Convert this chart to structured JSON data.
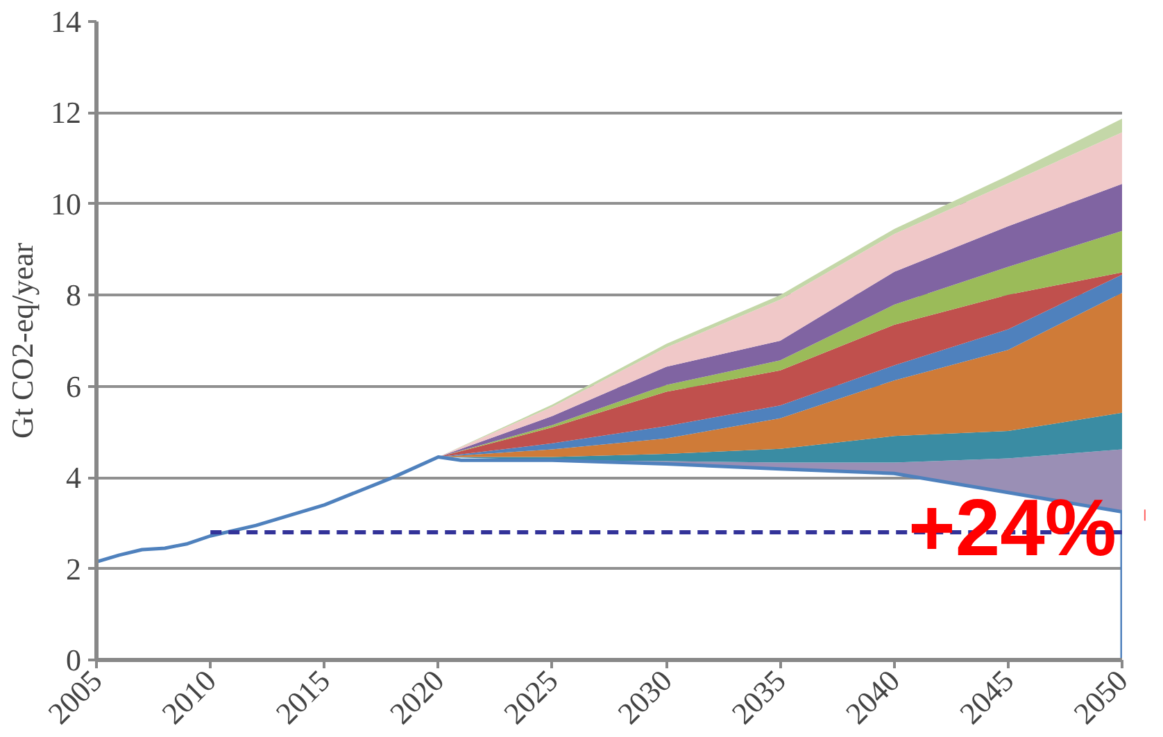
{
  "chart_data": {
    "type": "area",
    "ylabel": "Gt CO2-eq/year",
    "xlim": [
      2005,
      2050
    ],
    "ylim": [
      0,
      14
    ],
    "xticks": [
      2005,
      2010,
      2015,
      2020,
      2025,
      2030,
      2035,
      2040,
      2045,
      2050
    ],
    "yticks": [
      0,
      2,
      4,
      6,
      8,
      10,
      12,
      14
    ],
    "grid": "y",
    "x": [
      2020,
      2025,
      2030,
      2035,
      2040,
      2045,
      2050
    ],
    "series": [
      {
        "type": "line",
        "color": "#4f81bd",
        "x": [
          2005,
          2006,
          2007,
          2008,
          2009,
          2010,
          2012,
          2015,
          2018,
          2020,
          2021,
          2025,
          2030,
          2035,
          2040,
          2045,
          2050,
          2050
        ],
        "values": [
          2.15,
          2.3,
          2.42,
          2.45,
          2.55,
          2.72,
          2.95,
          3.4,
          4.0,
          4.45,
          4.38,
          4.38,
          4.3,
          4.19,
          4.09,
          3.67,
          3.25,
          0
        ]
      },
      {
        "color": "#9a8fb5",
        "values": [
          4.45,
          4.38,
          4.36,
          4.33,
          4.33,
          4.42,
          4.62
        ]
      },
      {
        "color": "#3a8ca3",
        "values": [
          4.45,
          4.45,
          4.52,
          4.63,
          4.91,
          5.02,
          5.42
        ]
      },
      {
        "color": "#cf7b38",
        "values": [
          4.45,
          4.62,
          4.86,
          5.3,
          6.13,
          6.8,
          8.05
        ]
      },
      {
        "color": "#4f81bd",
        "values": [
          4.45,
          4.75,
          5.13,
          5.58,
          6.46,
          7.25,
          8.45
        ]
      },
      {
        "color": "#c0504d",
        "values": [
          4.45,
          5.1,
          5.88,
          6.35,
          7.35,
          8.01,
          8.5
        ]
      },
      {
        "color": "#9bbb59",
        "values": [
          4.45,
          5.15,
          6.03,
          6.57,
          7.79,
          8.62,
          9.41
        ]
      },
      {
        "color": "#8064a2",
        "values": [
          4.45,
          5.35,
          6.43,
          7.0,
          8.51,
          9.51,
          10.44
        ]
      },
      {
        "color": "#f0c8c8",
        "values": [
          4.45,
          5.55,
          6.85,
          7.9,
          9.34,
          10.45,
          11.57
        ]
      },
      {
        "color": "#c4d7a8",
        "values": [
          4.45,
          5.6,
          6.93,
          8.0,
          9.45,
          10.62,
          11.87
        ]
      },
      {
        "type": "line",
        "color": "#333399",
        "line_style": "dashed",
        "x": [
          2010,
          2050
        ],
        "values": [
          2.8,
          2.8
        ]
      }
    ],
    "annotations": [
      "+24%"
    ]
  }
}
